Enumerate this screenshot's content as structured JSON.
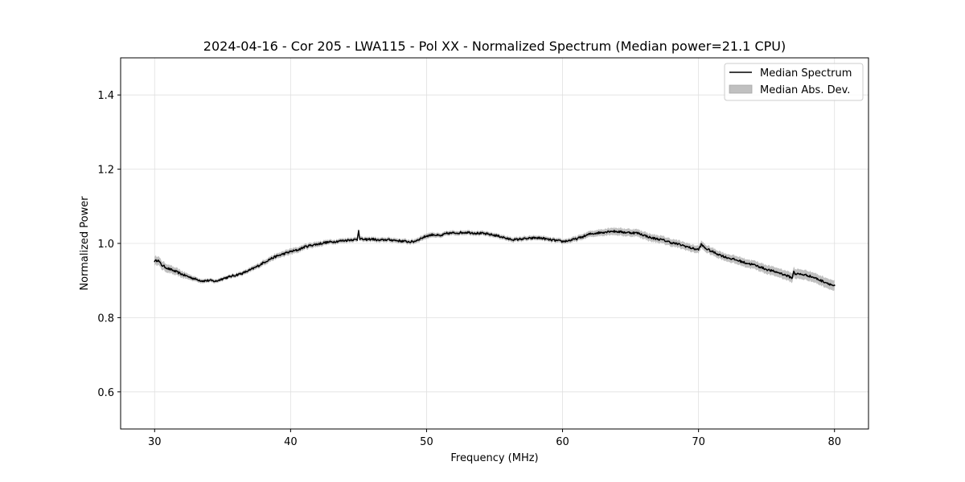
{
  "chart_data": {
    "type": "line",
    "title": "2024-04-16 - Cor 205 - LWA115 - Pol XX - Normalized Spectrum (Median power=21.1 CPU)",
    "xlabel": "Frequency (MHz)",
    "ylabel": "Normalized Power",
    "xlim": [
      27.5,
      82.5
    ],
    "ylim": [
      0.5,
      1.5
    ],
    "xticks": [
      30,
      40,
      50,
      60,
      70,
      80
    ],
    "xtick_labels": [
      "30",
      "40",
      "50",
      "60",
      "70",
      "80"
    ],
    "yticks": [
      0.6,
      0.8,
      1.0,
      1.2,
      1.4
    ],
    "ytick_labels": [
      "0.6",
      "0.8",
      "1.0",
      "1.2",
      "1.4"
    ],
    "grid": true,
    "legend": {
      "position": "top-right",
      "entries": [
        "Median Spectrum",
        "Median Abs. Dev."
      ]
    },
    "colors": {
      "line": "#000000",
      "band": "#c0c0c0",
      "grid": "#e0e0e0"
    },
    "series": [
      {
        "name": "Median Spectrum",
        "x": [
          30.0,
          30.25,
          30.5,
          31.0,
          31.5,
          32.0,
          32.5,
          33.0,
          33.5,
          34.0,
          34.5,
          35.0,
          35.5,
          36.0,
          36.5,
          37.0,
          37.5,
          38.0,
          38.5,
          39.0,
          39.5,
          40.0,
          40.5,
          41.0,
          41.5,
          42.0,
          42.5,
          43.0,
          43.5,
          44.0,
          44.5,
          44.9,
          45.0,
          45.1,
          45.5,
          46.0,
          46.5,
          47.0,
          47.5,
          48.0,
          48.5,
          49.0,
          49.5,
          50.0,
          50.5,
          51.0,
          51.5,
          52.0,
          52.5,
          53.0,
          53.5,
          54.0,
          54.5,
          55.0,
          55.5,
          56.0,
          56.5,
          57.0,
          57.5,
          58.0,
          58.5,
          59.0,
          59.5,
          60.0,
          60.5,
          61.0,
          61.5,
          62.0,
          62.5,
          63.0,
          63.5,
          64.0,
          64.5,
          65.0,
          65.5,
          66.0,
          66.5,
          67.0,
          67.5,
          68.0,
          68.5,
          69.0,
          69.5,
          70.0,
          70.2,
          70.5,
          71.0,
          71.5,
          72.0,
          72.5,
          73.0,
          73.5,
          74.0,
          74.5,
          75.0,
          75.5,
          76.0,
          76.5,
          76.9,
          77.0,
          77.1,
          77.5,
          78.0,
          78.5,
          79.0,
          79.5,
          80.0
        ],
        "values": [
          0.952,
          0.955,
          0.942,
          0.932,
          0.925,
          0.917,
          0.91,
          0.904,
          0.899,
          0.9,
          0.898,
          0.905,
          0.91,
          0.915,
          0.92,
          0.928,
          0.937,
          0.948,
          0.958,
          0.966,
          0.972,
          0.978,
          0.982,
          0.99,
          0.995,
          0.998,
          1.002,
          1.004,
          1.006,
          1.008,
          1.01,
          1.01,
          1.035,
          1.012,
          1.01,
          1.012,
          1.008,
          1.01,
          1.009,
          1.007,
          1.005,
          1.004,
          1.012,
          1.02,
          1.024,
          1.02,
          1.027,
          1.028,
          1.029,
          1.03,
          1.028,
          1.027,
          1.025,
          1.022,
          1.018,
          1.012,
          1.01,
          1.012,
          1.013,
          1.015,
          1.014,
          1.01,
          1.008,
          1.005,
          1.008,
          1.012,
          1.018,
          1.025,
          1.028,
          1.03,
          1.033,
          1.032,
          1.03,
          1.029,
          1.028,
          1.022,
          1.015,
          1.012,
          1.008,
          1.002,
          0.998,
          0.993,
          0.987,
          0.983,
          0.997,
          0.987,
          0.978,
          0.97,
          0.963,
          0.958,
          0.953,
          0.947,
          0.943,
          0.937,
          0.93,
          0.925,
          0.92,
          0.913,
          0.907,
          0.925,
          0.918,
          0.917,
          0.914,
          0.908,
          0.9,
          0.893,
          0.885
        ]
      },
      {
        "name": "Median Abs. Dev.",
        "x": [
          30.0,
          31.0,
          32.0,
          33.0,
          34.0,
          35.0,
          36.0,
          37.0,
          38.0,
          39.0,
          40.0,
          41.0,
          42.0,
          43.0,
          44.0,
          45.0,
          46.0,
          47.0,
          48.0,
          49.0,
          50.0,
          51.0,
          52.0,
          53.0,
          54.0,
          55.0,
          56.0,
          57.0,
          58.0,
          59.0,
          60.0,
          61.0,
          62.0,
          63.0,
          64.0,
          65.0,
          66.0,
          67.0,
          68.0,
          69.0,
          70.0,
          71.0,
          72.0,
          73.0,
          74.0,
          75.0,
          76.0,
          77.0,
          78.0,
          79.0,
          80.0
        ],
        "values": [
          0.01,
          0.009,
          0.007,
          0.004,
          0.003,
          0.003,
          0.003,
          0.004,
          0.005,
          0.005,
          0.006,
          0.005,
          0.005,
          0.004,
          0.004,
          0.004,
          0.004,
          0.004,
          0.004,
          0.004,
          0.005,
          0.004,
          0.004,
          0.004,
          0.004,
          0.004,
          0.004,
          0.004,
          0.004,
          0.004,
          0.004,
          0.005,
          0.006,
          0.007,
          0.008,
          0.008,
          0.008,
          0.008,
          0.008,
          0.008,
          0.008,
          0.008,
          0.008,
          0.009,
          0.009,
          0.01,
          0.01,
          0.011,
          0.011,
          0.011,
          0.012
        ]
      }
    ]
  }
}
